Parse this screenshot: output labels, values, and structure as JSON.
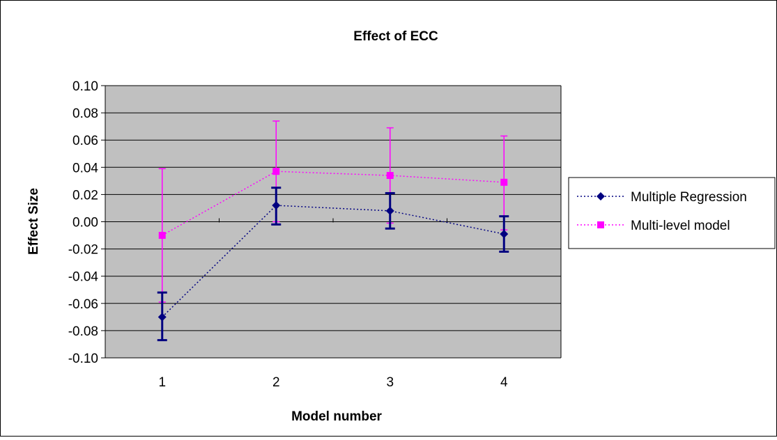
{
  "chart_data": {
    "type": "line",
    "title": "Effect of ECC",
    "xlabel": "Model number",
    "ylabel": "Effect Size",
    "categories": [
      "1",
      "2",
      "3",
      "4"
    ],
    "ylim": [
      -0.1,
      0.1
    ],
    "yticks": [
      0.1,
      0.08,
      0.06,
      0.04,
      0.02,
      0.0,
      -0.02,
      -0.04,
      -0.06,
      -0.08,
      -0.1
    ],
    "ytick_labels": [
      "0.10",
      "0.08",
      "0.06",
      "0.04",
      "0.02",
      "0.00",
      "-0.02",
      "-0.04",
      "-0.06",
      "-0.08",
      "-0.10"
    ],
    "grid": true,
    "legend_position": "right",
    "plot_background": "#c0c0c0",
    "series": [
      {
        "name": "Multiple Regression",
        "color": "#000080",
        "marker": "diamond",
        "line_style": "dotted",
        "values": [
          -0.07,
          0.012,
          0.008,
          -0.009
        ],
        "error_low": [
          -0.087,
          -0.002,
          -0.005,
          -0.022
        ],
        "error_high": [
          -0.052,
          0.025,
          0.021,
          0.004
        ]
      },
      {
        "name": "Multi-level model",
        "color": "#ff00ff",
        "marker": "square",
        "line_style": "dotted",
        "values": [
          -0.01,
          0.037,
          0.034,
          0.029
        ],
        "error_low": [
          -0.059,
          0.0,
          -0.001,
          -0.006
        ],
        "error_high": [
          0.039,
          0.074,
          0.069,
          0.063
        ]
      }
    ]
  }
}
